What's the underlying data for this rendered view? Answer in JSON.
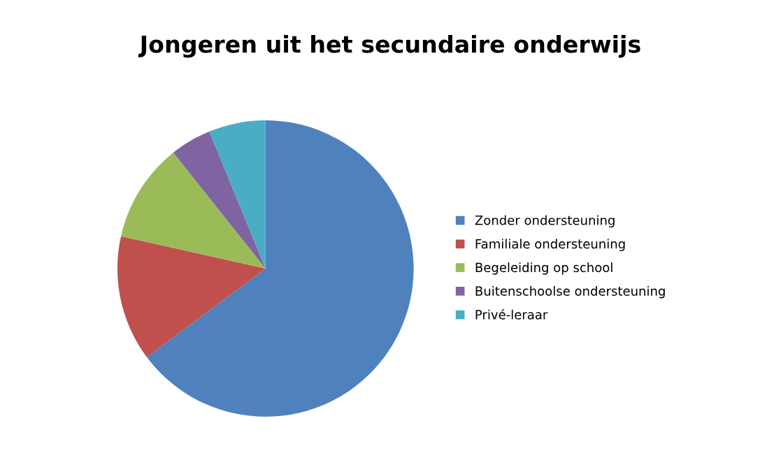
{
  "chart_data": {
    "type": "pie",
    "title": "Jongeren uit het secundaire onderwijs",
    "categories": [
      "Zonder ondersteuning",
      "Familiale ondersteuning",
      "Begeleiding op school",
      "Buitenschoolse ondersteuning",
      "Privé-leraar"
    ],
    "values": [
      64.8,
      13.7,
      10.8,
      4.5,
      6.2
    ],
    "colors": [
      "#4f81bd",
      "#c0504d",
      "#9bbb59",
      "#8064a2",
      "#4bacc6"
    ],
    "legend": "right"
  }
}
